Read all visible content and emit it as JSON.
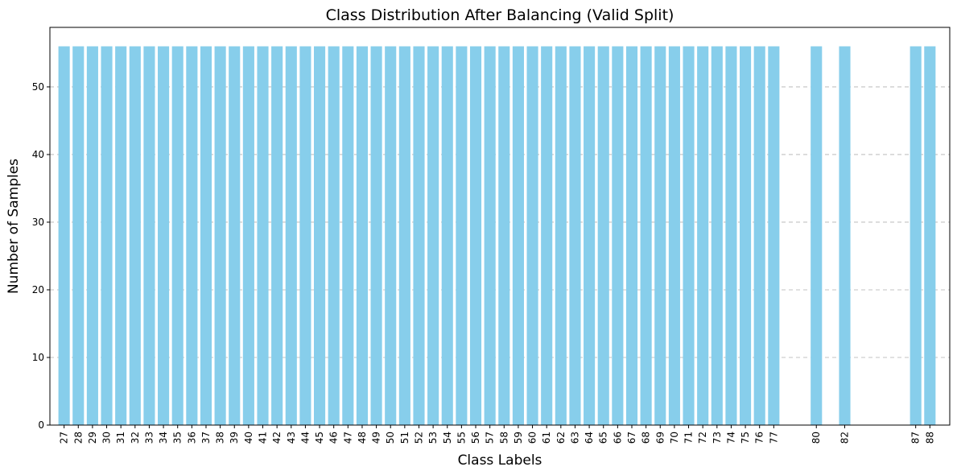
{
  "chart_data": {
    "type": "bar",
    "title": "Class Distribution After Balancing (Valid Split)",
    "xlabel": "Class Labels",
    "ylabel": "Number of Samples",
    "categories": [
      27,
      28,
      29,
      30,
      31,
      32,
      33,
      34,
      35,
      36,
      37,
      38,
      39,
      40,
      41,
      42,
      43,
      44,
      45,
      46,
      47,
      48,
      49,
      50,
      51,
      52,
      53,
      54,
      55,
      56,
      57,
      58,
      59,
      60,
      61,
      62,
      63,
      64,
      65,
      66,
      67,
      68,
      69,
      70,
      71,
      72,
      73,
      74,
      75,
      76,
      77,
      80,
      82,
      87,
      88
    ],
    "values": [
      56,
      56,
      56,
      56,
      56,
      56,
      56,
      56,
      56,
      56,
      56,
      56,
      56,
      56,
      56,
      56,
      56,
      56,
      56,
      56,
      56,
      56,
      56,
      56,
      56,
      56,
      56,
      56,
      56,
      56,
      56,
      56,
      56,
      56,
      56,
      56,
      56,
      56,
      56,
      56,
      56,
      56,
      56,
      56,
      56,
      56,
      56,
      56,
      56,
      56,
      56,
      56,
      56,
      56,
      56
    ],
    "ylim": [
      0,
      58.8
    ],
    "xlim": [
      26.0,
      89.4
    ],
    "yticks": [
      0,
      10,
      20,
      30,
      40,
      50
    ],
    "grid": "y",
    "bar_color": "#87ceeb",
    "x_axis": "numeric"
  }
}
